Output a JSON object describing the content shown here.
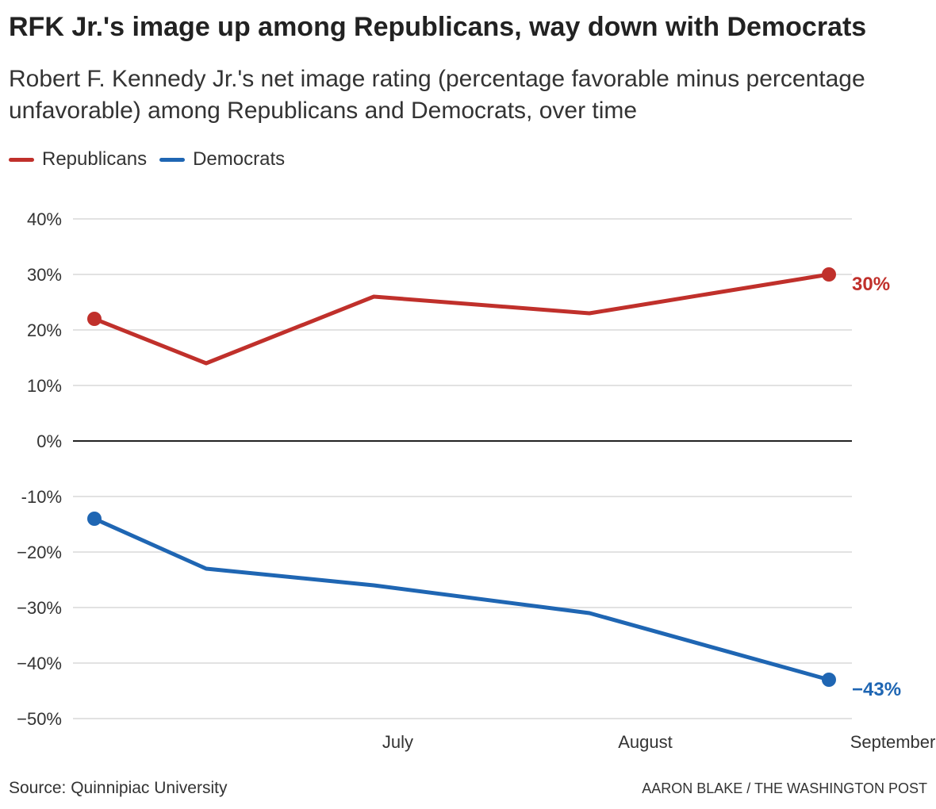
{
  "header": {
    "title": "RFK Jr.'s image up among Republicans, way down with Democrats",
    "subtitle": "Robert F. Kennedy Jr.'s net image rating (percentage favorable minus percentage unfavorable) among Republicans and Democrats, over time"
  },
  "legend": {
    "items": [
      {
        "label": "Republicans",
        "color": "#c0302b"
      },
      {
        "label": "Democrats",
        "color": "#1f66b3"
      }
    ]
  },
  "footer": {
    "source": "Source: Quinnipiac University",
    "credit": "AARON BLAKE / THE WASHINGTON POST"
  },
  "chart_data": {
    "type": "line",
    "title": "RFK Jr.'s image up among Republicans, way down with Democrats",
    "subtitle": "Robert F. Kennedy Jr.'s net image rating (percentage favorable minus percentage unfavorable) among Republicans and Democrats, over time",
    "x_ticks": [
      "July",
      "August",
      "September"
    ],
    "x_tick_dates": [
      "2023-07-01",
      "2023-08-01",
      "2023-09-01"
    ],
    "x": [
      "2023-06-08",
      "2023-06-22",
      "2023-07-13",
      "2023-08-09",
      "2023-09-08"
    ],
    "x_range": [
      "2023-06-08",
      "2023-09-08"
    ],
    "y_ticks": [
      40,
      30,
      20,
      10,
      0,
      -10,
      -20,
      -30,
      -40,
      -50
    ],
    "y_tick_labels": [
      "40%",
      "30%",
      "20%",
      "10%",
      "0%",
      "-10%",
      "−20%",
      "−30%",
      "−40%",
      "−50%"
    ],
    "ylim": [
      -50,
      40
    ],
    "grid": true,
    "legend_position": "top-left",
    "series": [
      {
        "name": "Republicans",
        "color": "#c0302b",
        "values": [
          22,
          14,
          26,
          23,
          30
        ],
        "end_label": "30%"
      },
      {
        "name": "Democrats",
        "color": "#1f66b3",
        "values": [
          -14,
          -23,
          -26,
          -31,
          -43
        ],
        "end_label": "−43%"
      }
    ]
  }
}
